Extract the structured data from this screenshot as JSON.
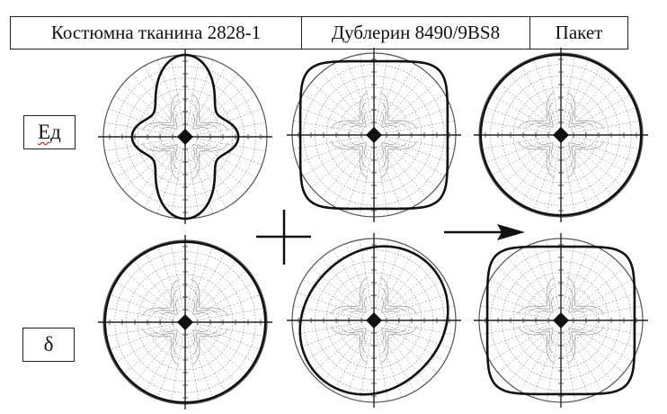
{
  "header": {
    "columns": [
      {
        "label": "Костюмна тканина 2828-1"
      },
      {
        "label": "Дублерин 8490/9BS8"
      },
      {
        "label": "Пакет"
      }
    ]
  },
  "rows": [
    {
      "label": "Ед"
    },
    {
      "label": "δ"
    }
  ],
  "operators": {
    "plus": "+",
    "arrow": "→"
  },
  "colors": {
    "curve": "#111111",
    "grid": "#7a7a7a",
    "text": "#111111"
  },
  "charts": [
    {
      "id": "fabric-Ed",
      "shape": "fourlobe"
    },
    {
      "id": "interlining-Ed",
      "shape": "square"
    },
    {
      "id": "package-Ed",
      "shape": "circle"
    },
    {
      "id": "fabric-delta",
      "shape": "circle"
    },
    {
      "id": "interlining-delta",
      "shape": "diamond"
    },
    {
      "id": "package-delta",
      "shape": "square"
    }
  ]
}
